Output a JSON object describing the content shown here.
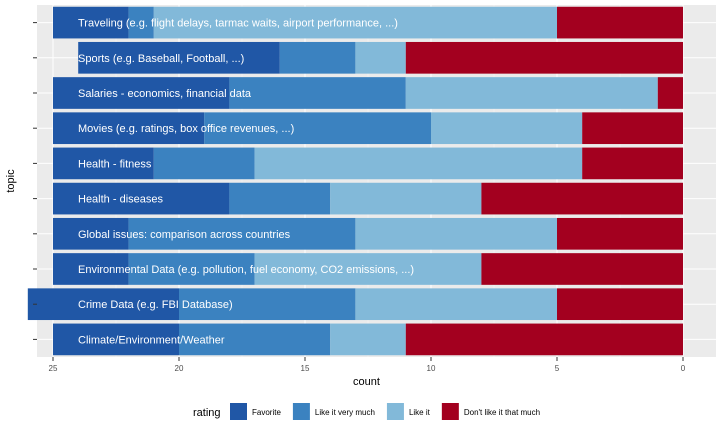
{
  "chart_data": {
    "type": "bar",
    "orientation": "horizontal",
    "stacked": true,
    "x_reversed": true,
    "xlabel": "count",
    "ylabel": "topic",
    "xlim": [
      0,
      25
    ],
    "x_ticks": [
      25,
      20,
      15,
      10,
      5,
      0
    ],
    "grid": true,
    "legend_position": "bottom",
    "legend_title": "rating",
    "categories": [
      "Traveling (e.g. flight delays, tarmac waits, airport performance, ...)",
      "Sports (e.g. Baseball, Football, ...)",
      "Salaries - economics, financial data",
      "Movies (e.g. ratings, box office revenues, ...)",
      "Health - fitness",
      "Health - diseases",
      "Global issues: comparison across countries",
      "Environmental Data (e.g. pollution, fuel economy, CO2 emissions, ...)",
      "Crime Data (e.g. FBI Database)",
      "Climate/Environment/Weather"
    ],
    "series": [
      {
        "name": "Favorite",
        "color": "#2057a6",
        "values": [
          3,
          8,
          7,
          6,
          4,
          7,
          3,
          3,
          6,
          5
        ]
      },
      {
        "name": "Like it very much",
        "color": "#3b82c0",
        "values": [
          1,
          3,
          7,
          9,
          4,
          4,
          9,
          5,
          7,
          6
        ]
      },
      {
        "name": "Like it",
        "color": "#82b9d9",
        "values": [
          16,
          2,
          10,
          6,
          13,
          6,
          8,
          9,
          8,
          3
        ]
      },
      {
        "name": "Don't like it that much",
        "color": "#a3001f",
        "values": [
          5,
          11,
          1,
          4,
          4,
          8,
          5,
          8,
          5,
          11
        ]
      }
    ]
  }
}
